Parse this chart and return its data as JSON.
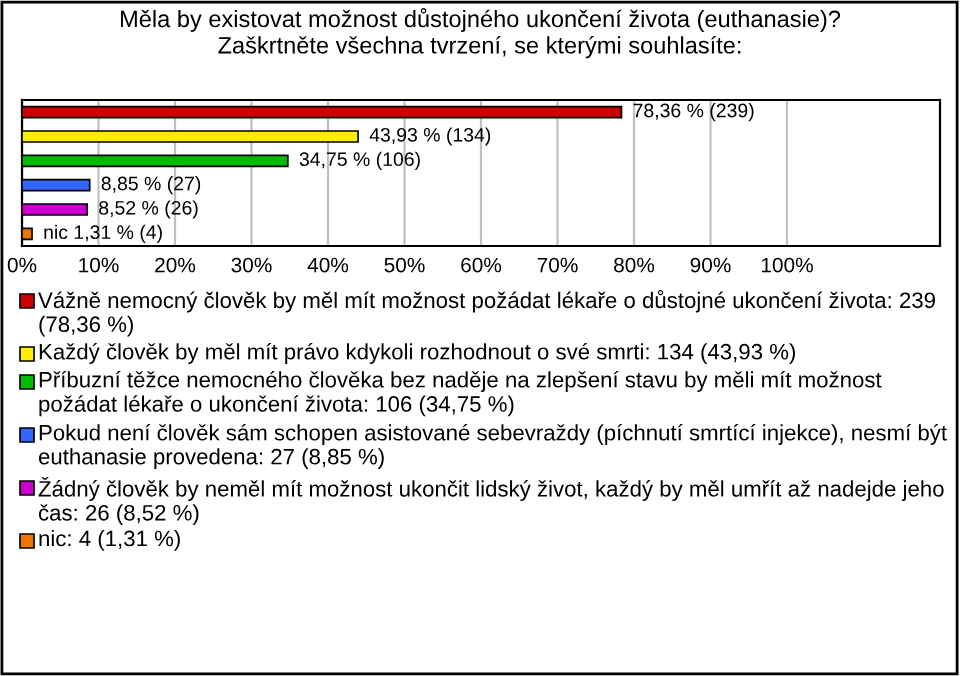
{
  "chart_data": {
    "type": "bar",
    "orientation": "horizontal",
    "title": "Měla by existovat možnost důstojného ukončení života (euthanasie)?",
    "subtitle": "Zaškrtněte všechna tvrzení, se kterými souhlasíte:",
    "categories": [
      null,
      null,
      null,
      null,
      null,
      null
    ],
    "series": [
      {
        "name": "Vážně nemocný člověk by měl mít možnost požádat lékaře o důstojné ukončení života: 239 (78,36 %)",
        "color": "#cc0000",
        "values": [
          78.36,
          null,
          null,
          null,
          null,
          null
        ],
        "value_labels": [
          "78,36 % (239)",
          null,
          null,
          null,
          null,
          null
        ]
      },
      {
        "name": "Každý člověk by měl mít právo kdykoli rozhodnout o své smrti: 134 (43,93 %)",
        "color": "#ffee00",
        "values": [
          null,
          43.93,
          null,
          null,
          null,
          null
        ],
        "value_labels": [
          null,
          "43,93 % (134)",
          null,
          null,
          null,
          null
        ]
      },
      {
        "name": "Příbuzní těžce nemocného člověka bez naděje na zlepšení stavu by měli mít možnost požádat lékaře o ukončení života: 106 (34,75 %)",
        "color": "#00bb00",
        "values": [
          null,
          null,
          34.75,
          null,
          null,
          null
        ],
        "value_labels": [
          null,
          null,
          "34,75 % (106)",
          null,
          null,
          null
        ]
      },
      {
        "name": "Pokud není člověk sám schopen asistované sebevraždy (píchnutí smrtící injekce), nesmí být euthanasie provedena: 27 (8,85 %)",
        "color": "#3366ff",
        "values": [
          null,
          null,
          null,
          8.85,
          null,
          null
        ],
        "value_labels": [
          null,
          null,
          null,
          "8,85 % (27)",
          null,
          null
        ]
      },
      {
        "name": "Žádný člověk by neměl mít možnost ukončit lidský život, každý by měl umřít až nadejde jeho čas: 26 (8,52 %)",
        "color": "#cc00cc",
        "values": [
          null,
          null,
          null,
          null,
          8.52,
          null
        ],
        "value_labels": [
          null,
          null,
          null,
          null,
          "8,52 % (26)",
          null
        ]
      },
      {
        "name": "nic: 4 (1,31 %)",
        "color": "#ee7700",
        "values": [
          null,
          null,
          null,
          null,
          null,
          1.31
        ],
        "value_labels": [
          null,
          null,
          null,
          null,
          null,
          "nic 1,31 % (4)"
        ]
      }
    ],
    "xlim": [
      0,
      120
    ],
    "xticks": [
      {
        "value": 0,
        "label": "0%"
      },
      {
        "value": 10,
        "label": "10%"
      },
      {
        "value": 20,
        "label": "20%"
      },
      {
        "value": 30,
        "label": "30%"
      },
      {
        "value": 40,
        "label": "40%"
      },
      {
        "value": 50,
        "label": "50%"
      },
      {
        "value": 60,
        "label": "60%"
      },
      {
        "value": 70,
        "label": "70%"
      },
      {
        "value": 80,
        "label": "80%"
      },
      {
        "value": 90,
        "label": "90%"
      },
      {
        "value": 100,
        "label": "100%"
      }
    ],
    "grid": "x",
    "legend": "bottom"
  }
}
